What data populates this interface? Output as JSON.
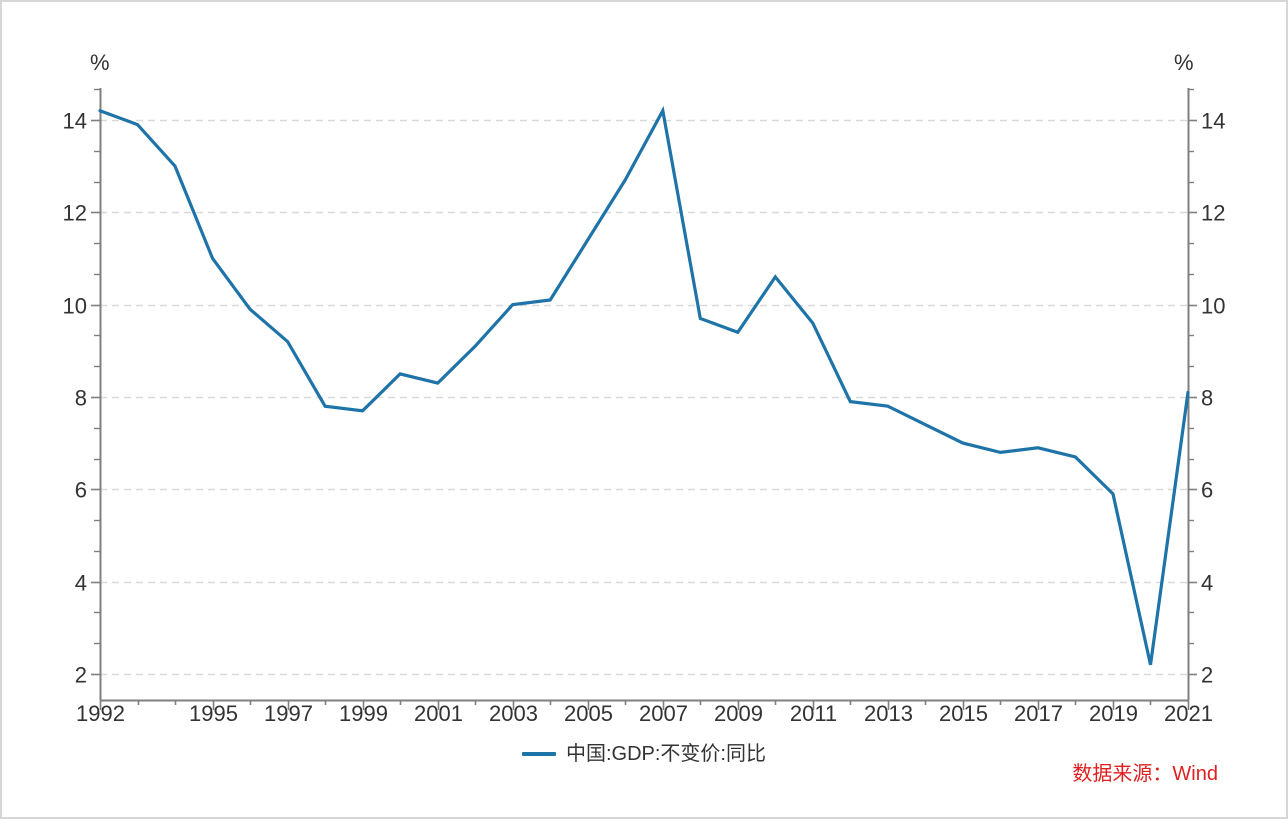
{
  "chart_data": {
    "type": "line",
    "title": "",
    "xlabel": "",
    "ylabel": "%",
    "x": [
      1992,
      1993,
      1994,
      1995,
      1996,
      1997,
      1998,
      1999,
      2000,
      2001,
      2002,
      2003,
      2004,
      2005,
      2006,
      2007,
      2008,
      2009,
      2010,
      2011,
      2012,
      2013,
      2014,
      2015,
      2016,
      2017,
      2018,
      2019,
      2020,
      2021
    ],
    "series": [
      {
        "name": "中国:GDP:不变价:同比",
        "values": [
          14.2,
          13.9,
          13.0,
          11.0,
          9.9,
          9.2,
          7.8,
          7.7,
          8.5,
          8.3,
          9.1,
          10.0,
          10.1,
          11.4,
          12.7,
          14.2,
          9.7,
          9.4,
          10.6,
          9.6,
          7.9,
          7.8,
          7.4,
          7.0,
          6.8,
          6.9,
          6.7,
          5.9,
          2.2,
          8.1
        ]
      }
    ],
    "y_ticks": [
      2,
      4,
      6,
      8,
      10,
      12,
      14
    ],
    "y_minor_tick_step": 0.6667,
    "ylim": [
      1.4,
      14.7
    ],
    "x_tick_years": [
      1992,
      1993,
      1994,
      1995,
      1996,
      1997,
      1998,
      1999,
      2000,
      2001,
      2002,
      2003,
      2004,
      2005,
      2006,
      2007,
      2008,
      2009,
      2010,
      2011,
      2012,
      2013,
      2014,
      2015,
      2016,
      2017,
      2018,
      2019,
      2020,
      2021
    ],
    "x_labeled_years": [
      1992,
      1995,
      1997,
      1999,
      2001,
      2003,
      2005,
      2007,
      2009,
      2011,
      2013,
      2015,
      2017,
      2019,
      2021
    ],
    "grid": "horizontal-dashed",
    "legend_position": "bottom-center",
    "dual_y_axis": true
  },
  "axes": {
    "y_unit_left": "%",
    "y_unit_right": "%"
  },
  "legend": {
    "series_label": "中国:GDP:不变价:同比"
  },
  "footer": {
    "source_text": "数据来源：Wind"
  },
  "colors": {
    "line": "#1e73a8",
    "source_text": "#e02020",
    "axis": "#7f7f7f",
    "grid": "#d9d9d9",
    "tick_label": "#333333"
  }
}
